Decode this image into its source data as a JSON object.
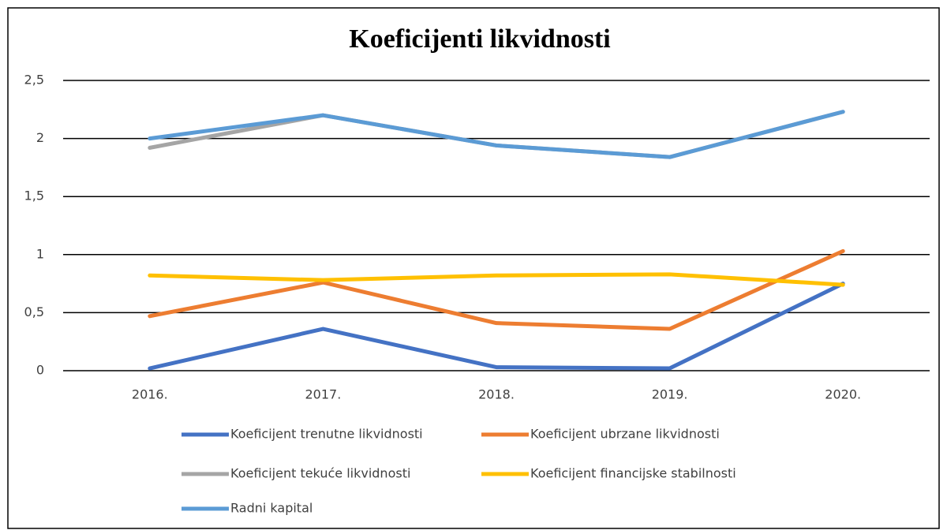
{
  "chart_data": {
    "type": "line",
    "title": "Koeficijenti likvidnosti",
    "categories": [
      "2016.",
      "2017.",
      "2018.",
      "2019.",
      "2020."
    ],
    "series": [
      {
        "name": "Koeficijent trenutne likvidnosti",
        "color": "#4472c4",
        "values": [
          0.02,
          0.36,
          0.03,
          0.02,
          0.75
        ]
      },
      {
        "name": "Koeficijent ubrzane likvidnosti",
        "color": "#ed7d31",
        "values": [
          0.47,
          0.76,
          0.41,
          0.36,
          1.03
        ]
      },
      {
        "name": "Koeficijent tekuće likvidnosti",
        "color": "#a5a5a5",
        "values": [
          1.92,
          2.2,
          1.94,
          1.84,
          2.23
        ]
      },
      {
        "name": "Koeficijent financijske stabilnosti",
        "color": "#ffc000",
        "values": [
          0.82,
          0.78,
          0.82,
          0.83,
          0.74
        ]
      },
      {
        "name": "Radni kapital",
        "color": "#5b9bd5",
        "values": [
          2.0,
          2.2,
          1.94,
          1.84,
          2.23
        ]
      }
    ],
    "ylim": [
      0,
      2.5
    ],
    "yticks": [
      0,
      {
        "value": 0.5,
        "label": "0,5"
      },
      1,
      {
        "value": 1.5,
        "label": "1,5"
      },
      2,
      {
        "value": 2.5,
        "label": "2,5"
      }
    ],
    "grid": true,
    "legend": "bottom"
  }
}
